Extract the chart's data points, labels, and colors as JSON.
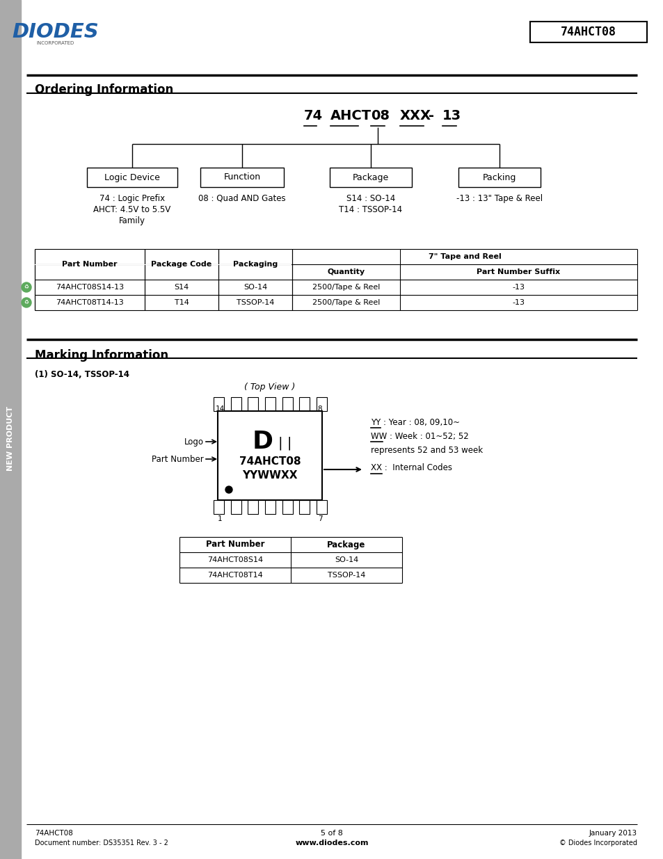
{
  "title_part": "74AHCT08",
  "ordering_section_title": "Ordering Information",
  "marking_section_title": "Marking Information",
  "boxes": [
    "Logic Device",
    "Function",
    "Package",
    "Packing"
  ],
  "box_descriptions": [
    [
      "74 : Logic Prefix",
      "AHCT: 4.5V to 5.5V",
      "Family"
    ],
    [
      "08 : Quad AND Gates"
    ],
    [
      "S14 : SO-14",
      "T14 : TSSOP-14"
    ],
    [
      "-13 : 13\" Tape & Reel"
    ]
  ],
  "ordering_table_rows": [
    [
      "74AHCT08S14-13",
      "S14",
      "SO-14",
      "2500/Tape & Reel",
      "-13"
    ],
    [
      "74AHCT08T14-13",
      "T14",
      "TSSOP-14",
      "2500/Tape & Reel",
      "-13"
    ]
  ],
  "marking_subtitle": "(1) SO-14, TSSOP-14",
  "top_view_label": "( Top View )",
  "chip_part_number": "74AHCT08",
  "chip_code": "YYWWXX",
  "logo_label": "Logo",
  "part_number_label": "Part Number",
  "yy_desc": "YY : Year : 08, 09,10~",
  "ww_desc": "WW : Week : 01~52; 52",
  "ww_desc2": "represents 52 and 53 week",
  "xx_desc": "XX :  Internal Codes",
  "marking_table_headers": [
    "Part Number",
    "Package"
  ],
  "marking_table_rows": [
    [
      "74AHCT08S14",
      "SO-14"
    ],
    [
      "74AHCT08T14",
      "TSSOP-14"
    ]
  ],
  "footer_left1": "74AHCT08",
  "footer_left2": "Document number: DS35351 Rev. 3 - 2",
  "footer_center1": "5 of 8",
  "footer_center2": "www.diodes.com",
  "footer_right1": "January 2013",
  "footer_right2": "© Diodes Incorporated",
  "blue_color": "#1F5FA6",
  "black": "#000000",
  "white": "#FFFFFF",
  "green": "#5daa5d",
  "sidebar_gray": "#AAAAAA"
}
